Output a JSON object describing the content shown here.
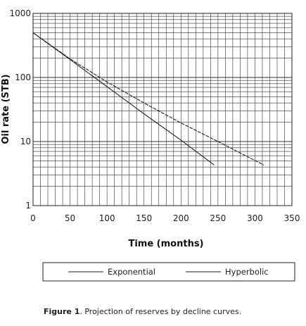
{
  "chart_data": {
    "type": "line",
    "xlabel": "Time (months)",
    "ylabel": "Oil rate (STB)",
    "xlim": [
      0,
      350
    ],
    "ylim": [
      1,
      1000
    ],
    "yscale": "log",
    "grid": true,
    "legend_placement": "below chart, boxed",
    "x_ticks": [
      "0",
      "50",
      "100",
      "150",
      "200",
      "250",
      "300",
      "350"
    ],
    "y_ticks": [
      "1",
      "10",
      "100",
      "1000"
    ],
    "series": [
      {
        "name": "Exponential",
        "x": [
          0,
          50,
          100,
          150,
          200,
          245
        ],
        "y": [
          500,
          190,
          72,
          27,
          10.5,
          4.3
        ],
        "color": "#222222"
      },
      {
        "name": "Hyperbolic",
        "x": [
          0,
          50,
          100,
          150,
          200,
          250,
          312
        ],
        "y": [
          500,
          195,
          85,
          40,
          19.5,
          10,
          4.3
        ],
        "color": "#222222"
      }
    ]
  },
  "caption": {
    "label": "Figure 1",
    "text": ". Projection of reserves by decline curves."
  }
}
